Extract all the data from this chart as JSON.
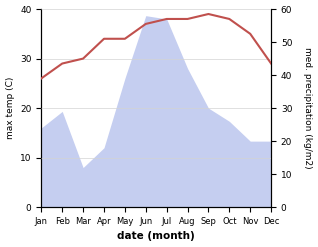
{
  "months": [
    "Jan",
    "Feb",
    "Mar",
    "Apr",
    "May",
    "Jun",
    "Jul",
    "Aug",
    "Sep",
    "Oct",
    "Nov",
    "Dec"
  ],
  "temperature": [
    26,
    29,
    30,
    34,
    34,
    37,
    38,
    38,
    39,
    38,
    35,
    29
  ],
  "precipitation": [
    24,
    29,
    12,
    18,
    39,
    58,
    57,
    42,
    30,
    26,
    20,
    20
  ],
  "temp_color": "#c0504d",
  "precip_fill_color": "#c5cef0",
  "temp_ylim": [
    0,
    40
  ],
  "precip_ylim": [
    0,
    60
  ],
  "temp_yticks": [
    0,
    10,
    20,
    30,
    40
  ],
  "precip_yticks": [
    0,
    10,
    20,
    30,
    40,
    50,
    60
  ],
  "ylabel_left": "max temp (C)",
  "ylabel_right": "med. precipitation (kg/m2)",
  "xlabel": "date (month)",
  "background_color": "#ffffff",
  "temp_linewidth": 1.5,
  "figsize": [
    3.18,
    2.47
  ],
  "dpi": 100
}
